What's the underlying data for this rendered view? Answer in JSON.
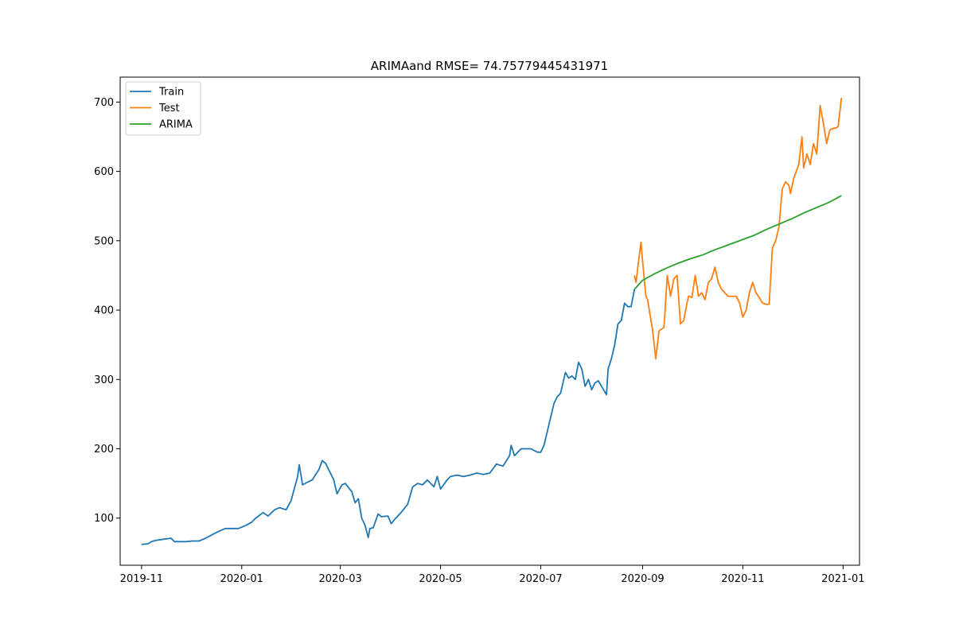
{
  "chart_data": {
    "type": "line",
    "title": "ARIMAand RMSE= 74.75779445431971",
    "xlabel": "",
    "ylabel": "",
    "x_axis_type": "date",
    "xlim": [
      "2019-10-19",
      "2021-01-11"
    ],
    "ylim": [
      32,
      736
    ],
    "x_ticks": [
      "2019-11",
      "2020-01",
      "2020-03",
      "2020-05",
      "2020-07",
      "2020-09",
      "2020-11",
      "2021-01"
    ],
    "y_ticks": [
      100,
      200,
      300,
      400,
      500,
      600,
      700
    ],
    "grid": false,
    "legend_position": "top-left",
    "colors": {
      "Train": "#1f77b4",
      "Test": "#ff7f0e",
      "ARIMA": "#2ca02c"
    },
    "series": [
      {
        "name": "Train",
        "x": [
          "2019-11-01",
          "2019-11-05",
          "2019-11-07",
          "2019-11-10",
          "2019-11-13",
          "2019-11-16",
          "2019-11-19",
          "2019-11-21",
          "2019-11-24",
          "2019-11-28",
          "2019-12-02",
          "2019-12-06",
          "2019-12-10",
          "2019-12-14",
          "2019-12-18",
          "2019-12-22",
          "2019-12-26",
          "2019-12-30",
          "2020-01-03",
          "2020-01-07",
          "2020-01-09",
          "2020-01-14",
          "2020-01-17",
          "2020-01-21",
          "2020-01-24",
          "2020-01-28",
          "2020-01-31",
          "2020-02-04",
          "2020-02-05",
          "2020-02-07",
          "2020-02-11",
          "2020-02-13",
          "2020-02-15",
          "2020-02-17",
          "2020-02-19",
          "2020-02-21",
          "2020-02-26",
          "2020-02-28",
          "2020-03-02",
          "2020-03-04",
          "2020-03-08",
          "2020-03-10",
          "2020-03-12",
          "2020-03-14",
          "2020-03-16",
          "2020-03-18",
          "2020-03-19",
          "2020-03-21",
          "2020-03-24",
          "2020-03-26",
          "2020-03-30",
          "2020-04-01",
          "2020-04-03",
          "2020-04-07",
          "2020-04-11",
          "2020-04-14",
          "2020-04-17",
          "2020-04-20",
          "2020-04-23",
          "2020-04-25",
          "2020-04-27",
          "2020-04-29",
          "2020-05-01",
          "2020-05-05",
          "2020-05-07",
          "2020-05-11",
          "2020-05-15",
          "2020-05-19",
          "2020-05-23",
          "2020-05-27",
          "2020-05-31",
          "2020-06-04",
          "2020-06-08",
          "2020-06-12",
          "2020-06-13",
          "2020-06-15",
          "2020-06-19",
          "2020-06-23",
          "2020-06-25",
          "2020-06-29",
          "2020-07-01",
          "2020-07-03",
          "2020-07-07",
          "2020-07-09",
          "2020-07-11",
          "2020-07-13",
          "2020-07-16",
          "2020-07-18",
          "2020-07-20",
          "2020-07-22",
          "2020-07-24",
          "2020-07-26",
          "2020-07-28",
          "2020-07-30",
          "2020-08-01",
          "2020-08-03",
          "2020-08-05",
          "2020-08-07",
          "2020-08-10",
          "2020-08-11",
          "2020-08-13",
          "2020-08-15",
          "2020-08-17",
          "2020-08-19",
          "2020-08-21",
          "2020-08-23",
          "2020-08-25",
          "2020-08-27"
        ],
        "values": [
          62,
          63,
          66,
          68,
          69,
          70,
          71,
          66,
          66,
          66,
          67,
          67,
          71,
          76,
          81,
          85,
          85,
          85,
          89,
          94,
          99,
          108,
          103,
          112,
          115,
          112,
          125,
          160,
          177,
          148,
          153,
          155,
          163,
          170,
          183,
          179,
          155,
          135,
          148,
          150,
          138,
          122,
          128,
          100,
          90,
          72,
          85,
          86,
          106,
          102,
          103,
          92,
          98,
          108,
          120,
          145,
          150,
          148,
          155,
          150,
          145,
          160,
          142,
          155,
          160,
          162,
          160,
          162,
          165,
          163,
          165,
          178,
          175,
          190,
          205,
          190,
          200,
          200,
          200,
          195,
          195,
          205,
          245,
          265,
          275,
          280,
          310,
          302,
          305,
          300,
          325,
          315,
          290,
          300,
          285,
          295,
          298,
          290,
          278,
          315,
          330,
          350,
          380,
          385,
          410,
          405,
          405,
          430
        ]
      },
      {
        "name": "Test",
        "x": [
          "2020-08-27",
          "2020-08-28",
          "2020-08-29",
          "2020-08-31",
          "2020-09-01",
          "2020-09-03",
          "2020-09-04",
          "2020-09-07",
          "2020-09-09",
          "2020-09-11",
          "2020-09-14",
          "2020-09-16",
          "2020-09-18",
          "2020-09-20",
          "2020-09-22",
          "2020-09-24",
          "2020-09-26",
          "2020-09-28",
          "2020-09-29",
          "2020-10-01",
          "2020-10-03",
          "2020-10-05",
          "2020-10-07",
          "2020-10-09",
          "2020-10-11",
          "2020-10-13",
          "2020-10-15",
          "2020-10-17",
          "2020-10-19",
          "2020-10-21",
          "2020-10-23",
          "2020-10-24",
          "2020-10-26",
          "2020-10-28",
          "2020-10-30",
          "2020-11-01",
          "2020-11-03",
          "2020-11-05",
          "2020-11-07",
          "2020-11-09",
          "2020-11-11",
          "2020-11-13",
          "2020-11-16",
          "2020-11-17",
          "2020-11-19",
          "2020-11-21",
          "2020-11-23",
          "2020-11-25",
          "2020-11-27",
          "2020-11-29",
          "2020-11-30",
          "2020-12-02",
          "2020-12-05",
          "2020-12-07",
          "2020-12-08",
          "2020-12-10",
          "2020-12-12",
          "2020-12-14",
          "2020-12-16",
          "2020-12-18",
          "2020-12-20",
          "2020-12-22",
          "2020-12-24",
          "2020-12-26",
          "2020-12-28",
          "2020-12-29",
          "2020-12-31"
        ],
        "values": [
          450,
          440,
          460,
          498,
          470,
          420,
          415,
          372,
          330,
          370,
          375,
          450,
          420,
          445,
          450,
          380,
          385,
          410,
          420,
          418,
          450,
          420,
          425,
          415,
          440,
          445,
          462,
          440,
          430,
          425,
          420,
          420,
          420,
          420,
          410,
          390,
          400,
          425,
          440,
          425,
          418,
          410,
          408,
          409,
          490,
          500,
          520,
          575,
          585,
          580,
          568,
          590,
          610,
          650,
          605,
          625,
          610,
          640,
          625,
          695,
          670,
          640,
          660,
          662,
          663,
          665,
          706
        ]
      },
      {
        "name": "ARIMA",
        "x": [
          "2020-08-27",
          "2020-09-01",
          "2020-09-08",
          "2020-09-15",
          "2020-09-22",
          "2020-09-30",
          "2020-10-08",
          "2020-10-15",
          "2020-10-23",
          "2020-10-31",
          "2020-11-08",
          "2020-11-15",
          "2020-11-23",
          "2020-12-01",
          "2020-12-08",
          "2020-12-15",
          "2020-12-23",
          "2020-12-31"
        ],
        "values": [
          430,
          443,
          452,
          460,
          467,
          474,
          480,
          487,
          494,
          501,
          508,
          516,
          524,
          532,
          540,
          547,
          555,
          565
        ]
      }
    ]
  }
}
